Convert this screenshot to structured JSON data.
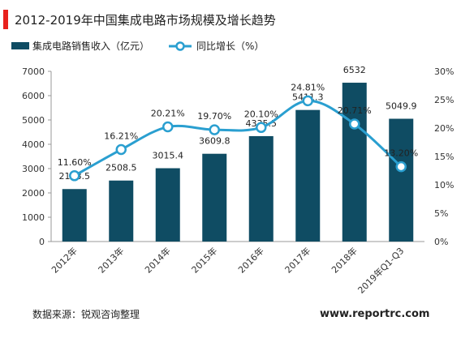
{
  "title": "2012-2019年中国集成电路市场规模及增长趋势",
  "source": "数据来源：锐观咨询整理",
  "website": "www.reportrc.com",
  "colors": {
    "accent_bar": "#e8211d",
    "bar": "#0f4c63",
    "line": "#2a9fd0",
    "axis": "#999999",
    "text": "#222222"
  },
  "chart_data": {
    "type": "bar",
    "categories": [
      "2012年",
      "2013年",
      "2014年",
      "2015年",
      "2016年",
      "2017年",
      "2018年",
      "2019年Q1-Q3"
    ],
    "series": [
      {
        "name": "集成电路销售收入（亿元）",
        "type": "bar",
        "axis": "left",
        "values": [
          2158.5,
          2508.5,
          3015.4,
          3609.8,
          4335.5,
          5411.3,
          6532,
          5049.9
        ],
        "labels": [
          "2158.5",
          "2508.5",
          "3015.4",
          "3609.8",
          "4335.5",
          "5411.3",
          "6532",
          "5049.9"
        ]
      },
      {
        "name": "同比增长（%）",
        "type": "line",
        "axis": "right",
        "values": [
          11.6,
          16.21,
          20.21,
          19.7,
          20.1,
          24.81,
          20.71,
          13.2
        ],
        "labels": [
          "11.60%",
          "16.21%",
          "20.21%",
          "19.70%",
          "20.10%",
          "24.81%",
          "20.71%",
          "13.20%"
        ]
      }
    ],
    "y_left": {
      "min": 0,
      "max": 7000,
      "ticks": [
        "0",
        "1000",
        "2000",
        "3000",
        "4000",
        "5000",
        "6000",
        "7000"
      ]
    },
    "y_right": {
      "min": 0,
      "max": 30,
      "ticks": [
        "0%",
        "5%",
        "10%",
        "15%",
        "20%",
        "25%",
        "30%"
      ]
    },
    "grid": false,
    "legend_position": "top-left"
  }
}
